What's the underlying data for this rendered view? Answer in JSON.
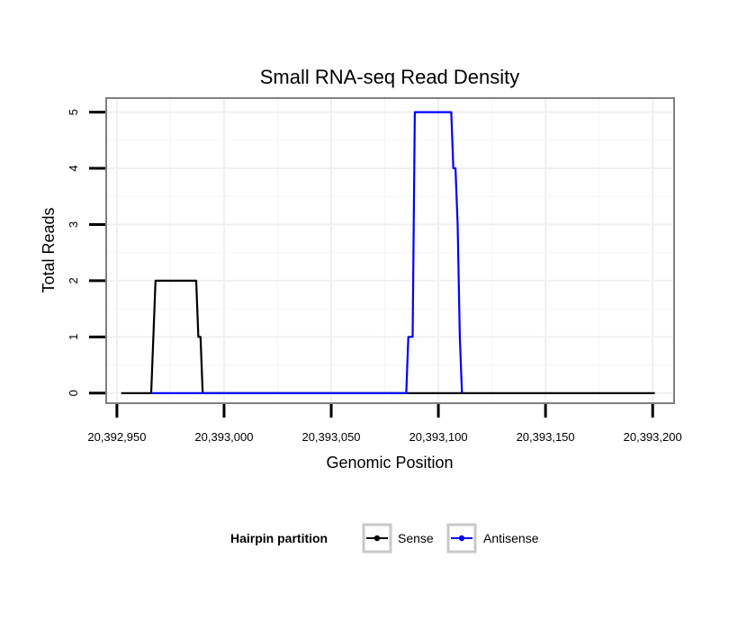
{
  "chart_data": {
    "type": "line",
    "title": "Small RNA-seq Read Density",
    "xlabel": "Genomic Position",
    "ylabel": "Total Reads",
    "xlim": [
      2039294,
      2039321
    ],
    "ylim": [
      -0.18,
      5.25
    ],
    "x_ticks": [
      2039295,
      2039300,
      2039305,
      2039310,
      2039315,
      2039320
    ],
    "x_scale_note": "positions in units of 10bp",
    "x_tick_labels": [
      "20,392,950",
      "20,393,000",
      "20,393,050",
      "20,393,100",
      "20,393,150",
      "20,393,200"
    ],
    "y_ticks": [
      0,
      1,
      2,
      3,
      4,
      5
    ],
    "y_tick_labels": [
      "0",
      "1",
      "2",
      "3",
      "4",
      "5"
    ],
    "grid": true,
    "legend": {
      "title": "Hairpin partition",
      "placement": "bottom",
      "entries": [
        {
          "name": "Sense",
          "color": "#000000"
        },
        {
          "name": "Antisense",
          "color": "#0000ff"
        }
      ]
    },
    "series": [
      {
        "name": "Sense",
        "color": "#000000",
        "x": [
          20392952,
          20392966,
          20392967,
          20392968,
          20392987,
          20392988,
          20392989,
          20392990,
          20393201
        ],
        "y": [
          0,
          0,
          1,
          2,
          2,
          1,
          1,
          0,
          0
        ]
      },
      {
        "name": "Antisense",
        "color": "#0000ff",
        "x": [
          20392966,
          20393085,
          20393086,
          20393088,
          20393089,
          20393106,
          20393107,
          20393108,
          20393109,
          20393110,
          20393111
        ],
        "y": [
          0,
          0,
          1,
          1,
          5,
          5,
          4,
          4,
          3,
          1,
          0
        ]
      }
    ]
  }
}
